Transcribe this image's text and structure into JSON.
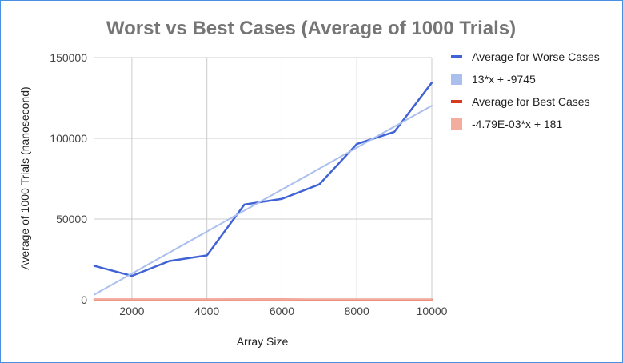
{
  "chart_data": {
    "type": "line",
    "title": "Worst vs Best Cases (Average of 1000 Trials)",
    "xlabel": "Array Size",
    "ylabel": "Average of 1000 Trials (nanosecond)",
    "xlim": [
      1000,
      10000
    ],
    "ylim": [
      0,
      150000
    ],
    "x_ticks": [
      2000,
      4000,
      6000,
      8000,
      10000
    ],
    "y_ticks": [
      0,
      50000,
      100000,
      150000
    ],
    "grid": true,
    "legend_position": "right",
    "series": [
      {
        "name": "Average for Worse Cases",
        "color": "#3f62d5",
        "marker": "line",
        "x": [
          1000,
          2000,
          3000,
          4000,
          5000,
          6000,
          7000,
          8000,
          9000,
          10000
        ],
        "y": [
          21000,
          14800,
          24000,
          27500,
          59000,
          62500,
          71500,
          96500,
          104000,
          134500
        ]
      },
      {
        "name": "13*x + -9745",
        "color": "#aabfee",
        "marker": "square",
        "trendline": {
          "slope": 13,
          "intercept": -9745
        },
        "x": [
          1000,
          10000
        ]
      },
      {
        "name": "Average for Best Cases",
        "color": "#d93a1e",
        "marker": "line",
        "x": [
          1000,
          2000,
          3000,
          4000,
          5000,
          6000,
          7000,
          8000,
          9000,
          10000
        ],
        "y": [
          180,
          170,
          170,
          165,
          160,
          155,
          150,
          145,
          140,
          135
        ]
      },
      {
        "name": "-4.79E-03*x + 181",
        "color": "#f3ad9e",
        "marker": "square",
        "trendline": {
          "slope": -0.00479,
          "intercept": 181
        },
        "x": [
          1000,
          10000
        ]
      }
    ]
  }
}
